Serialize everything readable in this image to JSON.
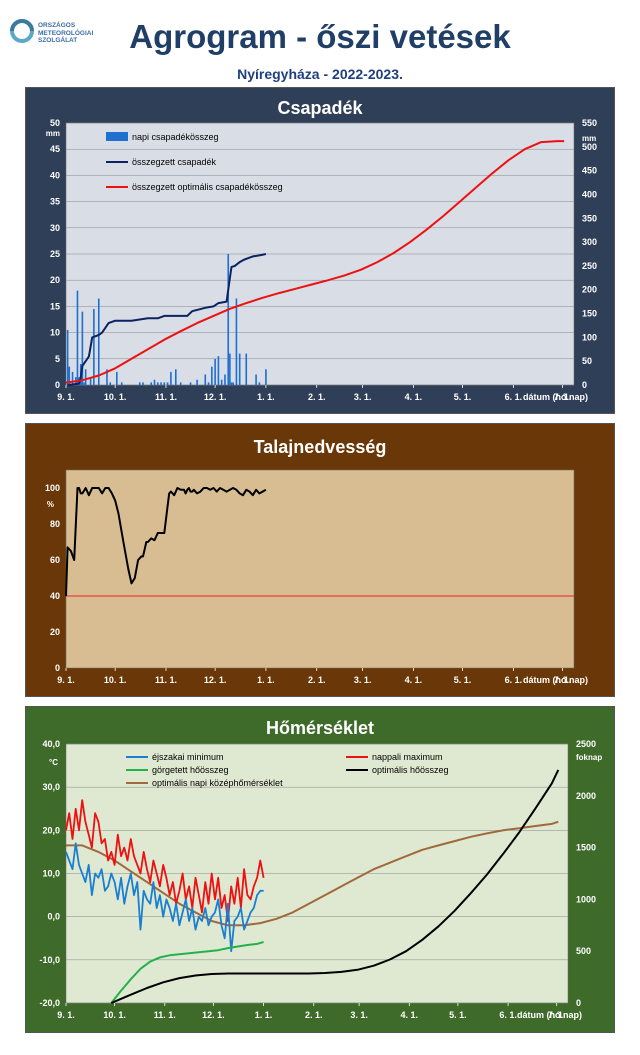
{
  "logo": {
    "lines": [
      "ORSZÁGOS",
      "METEOROLÓGIAI",
      "SZOLGÁLAT"
    ],
    "icon": "swirl-logo-icon"
  },
  "title": "Agrogram - őszi vetések",
  "subtitle": "Nyíregyháza - 2022-2023.",
  "colors": {
    "precip_bg": "#2f3f58",
    "soil_bg": "#6a3808",
    "temp_bg": "#3f6b2a",
    "precip_plot": "#d8dde6",
    "soil_plot": "#d9bd92",
    "temp_plot": "#dfe9d2"
  },
  "chart_data": [
    {
      "type": "bar",
      "title": "Csapadék",
      "x_ticks": [
        "9. 1.",
        "10. 1.",
        "11. 1.",
        "12. 1.",
        "1. 1.",
        "2. 1.",
        "3. 1.",
        "4. 1.",
        "5. 1.",
        "6. 1.",
        "7. 1."
      ],
      "xlabel": "dátum (hó.nap)",
      "ylabel_left": "mm",
      "ylabel_right": "mm",
      "ylim_left": [
        0,
        50
      ],
      "yticks_left": [
        "0",
        "5",
        "10",
        "15",
        "20",
        "25",
        "30",
        "35",
        "40",
        "45",
        "50"
      ],
      "ylim_right": [
        0,
        550
      ],
      "yticks_right": [
        "0",
        "50",
        "100",
        "150",
        "200",
        "250",
        "300",
        "350",
        "400",
        "450",
        "500",
        "550"
      ],
      "legend": [
        "napi csapadékösszeg",
        "összegzett csapadék",
        "összegzett optimális csapadékösszeg"
      ],
      "series": [
        {
          "name": "napi csapadékösszeg",
          "color": "#1e6fd0",
          "x_day": [
            1,
            2,
            4,
            6,
            7,
            8,
            9,
            10,
            11,
            12,
            15,
            17,
            20,
            25,
            27,
            31,
            34,
            45,
            47,
            52,
            54,
            56,
            58,
            60,
            62,
            64,
            67,
            70,
            76,
            80,
            85,
            87,
            89,
            91,
            93,
            95,
            97,
            99,
            100,
            101,
            102,
            104,
            106,
            110,
            116,
            118,
            122
          ],
          "values": [
            10.5,
            3.5,
            2.5,
            1.5,
            18,
            1.5,
            4,
            14,
            0.5,
            3,
            1.5,
            14.5,
            16.5,
            3,
            0.5,
            2.5,
            0.5,
            0.5,
            0.5,
            0.5,
            1,
            0.5,
            0.5,
            0.5,
            0.5,
            2.5,
            3,
            0.5,
            0.5,
            1,
            2,
            0.5,
            3.5,
            5,
            5.5,
            1,
            2,
            25,
            6,
            0.5,
            0.5,
            16.5,
            6,
            6,
            2,
            0.5,
            3
          ]
        },
        {
          "name": "összegzett csapadék",
          "color": "#0d2260",
          "x_day": [
            1,
            8,
            9,
            10,
            14,
            16,
            20,
            22,
            26,
            30,
            40,
            50,
            56,
            60,
            74,
            77,
            85,
            90,
            93,
            98,
            100,
            101,
            103,
            106,
            108,
            110,
            114,
            118,
            122
          ],
          "values": [
            0,
            3,
            15,
            40,
            60,
            100,
            105,
            110,
            130,
            135,
            135,
            140,
            140,
            145,
            145,
            155,
            162,
            165,
            172,
            175,
            225,
            248,
            250,
            258,
            262,
            265,
            270,
            272,
            275
          ]
        },
        {
          "name": "összegzett optimális csapadékösszeg",
          "color": "#ee1111",
          "x_day": [
            0,
            10,
            20,
            30,
            40,
            50,
            60,
            70,
            80,
            90,
            100,
            110,
            120,
            130,
            140,
            150,
            160,
            170,
            180,
            190,
            200,
            210,
            220,
            230,
            240,
            250,
            260,
            270,
            280,
            290,
            300,
            304
          ],
          "values": [
            5,
            10,
            20,
            35,
            55,
            75,
            95,
            113,
            130,
            145,
            160,
            172,
            183,
            193,
            202,
            211,
            220,
            230,
            242,
            258,
            277,
            300,
            326,
            354,
            384,
            414,
            444,
            472,
            495,
            510,
            512,
            512
          ]
        }
      ]
    },
    {
      "type": "line",
      "title": "Talajnedvesség",
      "x_ticks": [
        "9. 1.",
        "10. 1.",
        "11. 1.",
        "12. 1.",
        "1. 1.",
        "2. 1.",
        "3. 1.",
        "4. 1.",
        "5. 1.",
        "6. 1.",
        "7. 1."
      ],
      "xlabel": "dátum (hó.nap)",
      "ylabel": "%",
      "ylim": [
        0,
        110
      ],
      "yticks": [
        "0",
        "20",
        "40",
        "60",
        "80",
        "100"
      ],
      "threshold": {
        "value": 40,
        "color": "#ee2222"
      },
      "series": [
        {
          "name": "",
          "color": "#000000",
          "x_day": [
            0,
            1,
            3,
            5,
            7,
            8,
            9,
            10,
            12,
            14,
            16,
            18,
            20,
            22,
            24,
            26,
            28,
            30,
            32,
            35,
            38,
            40,
            42,
            44,
            46,
            47,
            48,
            49,
            50,
            52,
            54,
            56,
            58,
            60,
            62,
            63,
            64,
            66,
            68,
            70,
            72,
            73,
            74,
            75,
            76,
            77,
            78,
            80,
            82,
            84,
            86,
            88,
            90,
            92,
            94,
            96,
            98,
            100,
            102,
            104,
            106,
            108,
            110,
            112,
            114,
            116,
            118,
            120,
            122
          ],
          "values": [
            40,
            67,
            65,
            60,
            100,
            100,
            97,
            97,
            100,
            96,
            100,
            100,
            100,
            97,
            100,
            100,
            97,
            93,
            86,
            70,
            55,
            47,
            50,
            60,
            62,
            62,
            66,
            70,
            70,
            72,
            71,
            75,
            75,
            75,
            90,
            97,
            98,
            96,
            100,
            99,
            99,
            97,
            99,
            100,
            98,
            98,
            99,
            97,
            98,
            100,
            100,
            99,
            100,
            98,
            100,
            99,
            98,
            99,
            100,
            99,
            97,
            96,
            99,
            98,
            96,
            99,
            97,
            98,
            99
          ]
        }
      ]
    },
    {
      "type": "line",
      "title": "Hőmérséklet",
      "x_ticks": [
        "9. 1.",
        "10. 1.",
        "11. 1.",
        "12. 1.",
        "1. 1.",
        "2. 1.",
        "3. 1.",
        "4. 1.",
        "5. 1.",
        "6. 1.",
        "7. 1."
      ],
      "xlabel": "dátum (hó.nap)",
      "ylabel_left": "°C",
      "ylabel_right": "foknap",
      "ylim_left": [
        -20,
        40
      ],
      "yticks_left": [
        "-20,0",
        "-10,0",
        "0,0",
        "10,0",
        "20,0",
        "30,0",
        "40,0"
      ],
      "ylim_right": [
        0,
        2500
      ],
      "yticks_right": [
        "0",
        "500",
        "1000",
        "1500",
        "2000",
        "2500"
      ],
      "legend": [
        "éjszakai minimum",
        "nappali maximum",
        "görgetett hőösszeg",
        "optimális hőösszeg",
        "optimális napi középhőmérséklet"
      ],
      "series": [
        {
          "name": "éjszakai minimum",
          "color": "#1a7fd0",
          "axis": "left",
          "x_day": [
            0,
            2,
            4,
            6,
            8,
            10,
            12,
            14,
            16,
            18,
            20,
            22,
            24,
            26,
            28,
            30,
            32,
            34,
            36,
            38,
            40,
            42,
            44,
            46,
            48,
            50,
            52,
            54,
            56,
            58,
            60,
            62,
            64,
            66,
            68,
            70,
            72,
            74,
            76,
            78,
            80,
            82,
            84,
            86,
            88,
            90,
            92,
            94,
            96,
            98,
            100,
            102,
            104,
            106,
            108,
            110,
            112,
            114,
            116,
            118,
            120,
            122
          ],
          "values": [
            15,
            13,
            11,
            17,
            12,
            10,
            8,
            12,
            5,
            10,
            9,
            11,
            6,
            7,
            10,
            8,
            4,
            9,
            3,
            7,
            10,
            5,
            8,
            -3,
            6,
            4,
            3,
            8,
            2,
            5,
            0,
            4,
            2,
            -1,
            3,
            -2,
            1,
            4,
            -1,
            2,
            -3,
            0,
            -1,
            2,
            -2,
            0,
            1,
            4,
            -2,
            -5,
            3,
            -8,
            -1,
            0,
            2,
            -3,
            -1,
            1,
            2,
            5,
            6,
            6
          ]
        },
        {
          "name": "nappali maximum",
          "color": "#ee1111",
          "axis": "left",
          "x_day": [
            0,
            2,
            4,
            6,
            8,
            10,
            12,
            14,
            16,
            18,
            20,
            22,
            24,
            26,
            28,
            30,
            32,
            34,
            36,
            38,
            40,
            42,
            44,
            46,
            48,
            50,
            52,
            54,
            56,
            58,
            60,
            62,
            64,
            66,
            68,
            70,
            72,
            74,
            76,
            78,
            80,
            82,
            84,
            86,
            88,
            90,
            92,
            94,
            96,
            98,
            100,
            102,
            104,
            106,
            108,
            110,
            112,
            114,
            116,
            118,
            120,
            122
          ],
          "values": [
            20,
            24,
            18,
            25,
            20,
            27,
            22,
            19,
            16,
            24,
            22,
            17,
            18,
            13,
            15,
            12,
            19,
            14,
            16,
            13,
            18,
            14,
            12,
            10,
            15,
            11,
            8,
            13,
            10,
            7,
            12,
            9,
            5,
            8,
            3,
            6,
            10,
            4,
            7,
            2,
            9,
            5,
            1,
            8,
            3,
            10,
            4,
            9,
            2,
            5,
            -1,
            7,
            3,
            9,
            2,
            11,
            5,
            4,
            7,
            9,
            13,
            9
          ]
        },
        {
          "name": "görgetett hőösszeg",
          "color": "#22b14c",
          "axis": "right",
          "x_day": [
            28,
            34,
            40,
            46,
            52,
            58,
            64,
            70,
            76,
            82,
            88,
            94,
            100,
            106,
            112,
            118,
            122
          ],
          "values": [
            0,
            120,
            230,
            330,
            400,
            440,
            460,
            470,
            480,
            490,
            500,
            510,
            530,
            545,
            560,
            570,
            590
          ]
        },
        {
          "name": "optimális hőösszeg",
          "color": "#000000",
          "axis": "right",
          "x_day": [
            28,
            40,
            50,
            60,
            70,
            80,
            90,
            100,
            110,
            120,
            130,
            140,
            150,
            160,
            170,
            180,
            190,
            200,
            210,
            220,
            230,
            240,
            250,
            260,
            270,
            280,
            290,
            300,
            304
          ],
          "values": [
            0,
            80,
            145,
            200,
            240,
            265,
            280,
            285,
            285,
            285,
            285,
            285,
            285,
            290,
            300,
            320,
            360,
            420,
            500,
            610,
            740,
            890,
            1060,
            1240,
            1440,
            1650,
            1880,
            2120,
            2250
          ]
        },
        {
          "name": "optimális napi középhőmérséklet",
          "color": "#a0693c",
          "axis": "left",
          "x_day": [
            0,
            10,
            20,
            30,
            40,
            50,
            60,
            70,
            80,
            90,
            100,
            110,
            120,
            130,
            140,
            150,
            160,
            170,
            180,
            190,
            200,
            210,
            220,
            230,
            240,
            250,
            260,
            270,
            280,
            290,
            300,
            304
          ],
          "values": [
            16.5,
            16.5,
            15,
            13,
            10.5,
            8,
            5.5,
            3,
            1,
            -1,
            -2,
            -2,
            -1.5,
            -0.5,
            1,
            3,
            5,
            7,
            9,
            11,
            12.5,
            14,
            15.5,
            16.5,
            17.5,
            18.5,
            19.3,
            20,
            20.5,
            21,
            21.5,
            22
          ]
        }
      ]
    }
  ]
}
